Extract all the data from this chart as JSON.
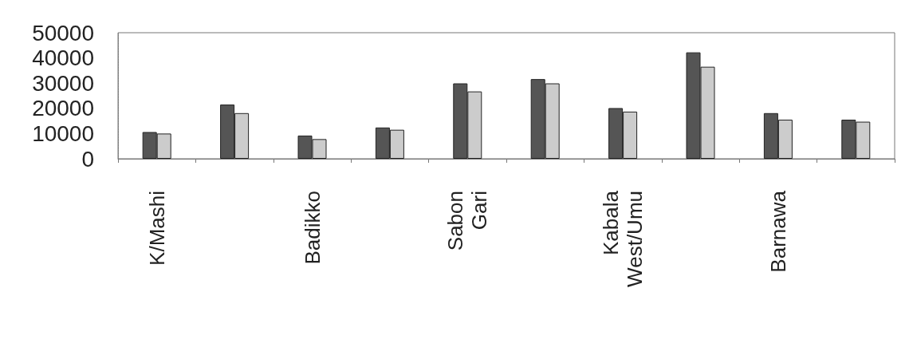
{
  "chart_data": {
    "type": "bar",
    "categories": [
      "K/Mashi",
      null,
      "Badikko",
      null,
      "Sabon Gari",
      null,
      "Kabala West/Umu",
      null,
      "Barnawa",
      null
    ],
    "series": [
      {
        "color": "#555555",
        "values": [
          10600,
          21500,
          9200,
          12400,
          29900,
          31600,
          20100,
          42200,
          18100,
          15500
        ]
      },
      {
        "color": "#cccccc",
        "values": [
          10000,
          18100,
          7800,
          11500,
          26700,
          29900,
          18700,
          36500,
          15500,
          14700
        ]
      }
    ],
    "ylim": [
      0,
      50000
    ],
    "yticks": [
      0,
      10000,
      20000,
      30000,
      40000,
      50000
    ]
  }
}
